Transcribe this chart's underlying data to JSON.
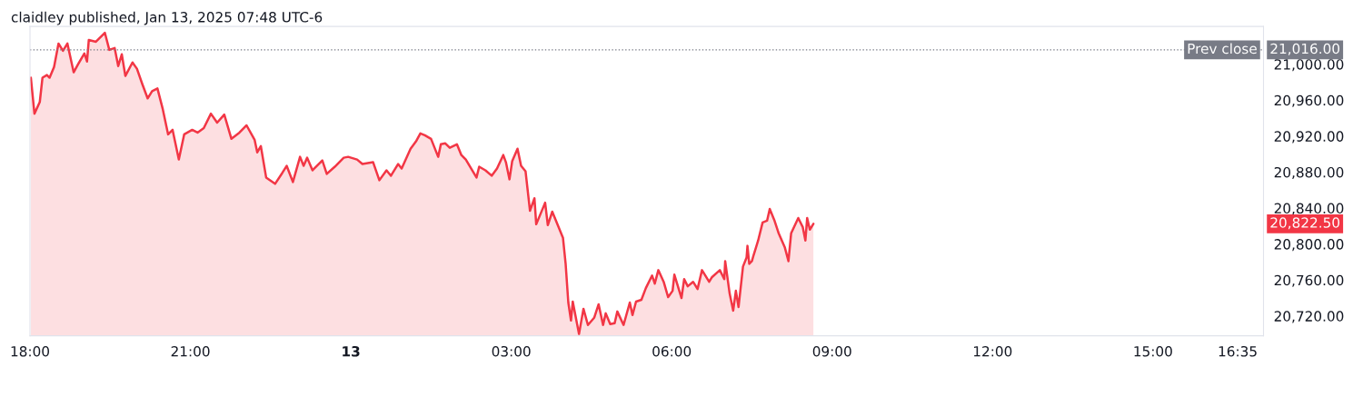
{
  "chart_data": {
    "type": "area",
    "title": "claidley published, Jan 13, 2025 07:48 UTC-6",
    "x": [
      "2025-01-12T18:01",
      "2025-01-12T18:05",
      "2025-01-12T18:11",
      "2025-01-12T18:14",
      "2025-01-12T18:19",
      "2025-01-12T18:22",
      "2025-01-12T18:27",
      "2025-01-12T18:32",
      "2025-01-12T18:37",
      "2025-01-12T18:42",
      "2025-01-12T18:49",
      "2025-01-12T18:54",
      "2025-01-12T19:01",
      "2025-01-12T19:04",
      "2025-01-12T19:06",
      "2025-01-12T19:14",
      "2025-01-12T19:24",
      "2025-01-12T19:29",
      "2025-01-12T19:35",
      "2025-01-12T19:39",
      "2025-01-12T19:43",
      "2025-01-12T19:47",
      "2025-01-12T19:55",
      "2025-01-12T20:00",
      "2025-01-12T20:06",
      "2025-01-12T20:12",
      "2025-01-12T20:17",
      "2025-01-12T20:23",
      "2025-01-12T20:29",
      "2025-01-12T20:35",
      "2025-01-12T20:40",
      "2025-01-12T20:47",
      "2025-01-12T20:53",
      "2025-01-12T21:02",
      "2025-01-12T21:08",
      "2025-01-12T21:15",
      "2025-01-12T21:23",
      "2025-01-12T21:30",
      "2025-01-12T21:38",
      "2025-01-12T21:46",
      "2025-01-12T21:55",
      "2025-01-12T22:03",
      "2025-01-12T22:12",
      "2025-01-12T22:15",
      "2025-01-12T22:19",
      "2025-01-12T22:25",
      "2025-01-12T22:35",
      "2025-01-12T22:43",
      "2025-01-12T22:48",
      "2025-01-12T22:55",
      "2025-01-12T23:03",
      "2025-01-12T23:07",
      "2025-01-12T23:11",
      "2025-01-12T23:17",
      "2025-01-12T23:28",
      "2025-01-12T23:33",
      "2025-01-12T23:42",
      "2025-01-12T23:52",
      "2025-01-12T23:57",
      "2025-01-13T00:07",
      "2025-01-13T00:13",
      "2025-01-13T00:25",
      "2025-01-13T00:32",
      "2025-01-13T00:40",
      "2025-01-13T00:45",
      "2025-01-13T00:53",
      "2025-01-13T00:57",
      "2025-01-13T01:07",
      "2025-01-13T01:13",
      "2025-01-13T01:18",
      "2025-01-13T01:23",
      "2025-01-13T01:30",
      "2025-01-13T01:38",
      "2025-01-13T01:41",
      "2025-01-13T01:46",
      "2025-01-13T01:51",
      "2025-01-13T01:59",
      "2025-01-13T02:04",
      "2025-01-13T02:09",
      "2025-01-13T02:21",
      "2025-01-13T02:24",
      "2025-01-13T02:31",
      "2025-01-13T02:38",
      "2025-01-13T02:44",
      "2025-01-13T02:51",
      "2025-01-13T02:54",
      "2025-01-13T02:58",
      "2025-01-13T03:01",
      "2025-01-13T03:07",
      "2025-01-13T03:11",
      "2025-01-13T03:16",
      "2025-01-13T03:21",
      "2025-01-13T03:26",
      "2025-01-13T03:28",
      "2025-01-13T03:38",
      "2025-01-13T03:41",
      "2025-01-13T03:46",
      "2025-01-13T03:53",
      "2025-01-13T03:58",
      "2025-01-13T04:01",
      "2025-01-13T04:04",
      "2025-01-13T04:07",
      "2025-01-13T04:09",
      "2025-01-13T04:16",
      "2025-01-13T04:21",
      "2025-01-13T04:26",
      "2025-01-13T04:33",
      "2025-01-13T04:38",
      "2025-01-13T04:43",
      "2025-01-13T04:46",
      "2025-01-13T04:51",
      "2025-01-13T04:56",
      "2025-01-13T04:59",
      "2025-01-13T05:06",
      "2025-01-13T05:13",
      "2025-01-13T05:16",
      "2025-01-13T05:20",
      "2025-01-13T05:26",
      "2025-01-13T05:31",
      "2025-01-13T05:38",
      "2025-01-13T05:41",
      "2025-01-13T05:45",
      "2025-01-13T05:51",
      "2025-01-13T05:56",
      "2025-01-13T06:01",
      "2025-01-13T06:03",
      "2025-01-13T06:11",
      "2025-01-13T06:14",
      "2025-01-13T06:18",
      "2025-01-13T06:24",
      "2025-01-13T06:29",
      "2025-01-13T06:34",
      "2025-01-13T06:42",
      "2025-01-13T06:45",
      "2025-01-13T06:54",
      "2025-01-13T06:59",
      "2025-01-13T07:00",
      "2025-01-13T07:05",
      "2025-01-13T07:09",
      "2025-01-13T07:12",
      "2025-01-13T07:15",
      "2025-01-13T07:20",
      "2025-01-13T07:24",
      "2025-01-13T07:25",
      "2025-01-13T07:27",
      "2025-01-13T07:30",
      "2025-01-13T07:32",
      "2025-01-13T07:37",
      "2025-01-13T07:42",
      "2025-01-13T07:47",
      "2025-01-13T07:50",
      "2025-01-13T07:55",
      "2025-01-13T08:00",
      "2025-01-13T08:07",
      "2025-01-13T08:11",
      "2025-01-13T08:14",
      "2025-01-13T08:22",
      "2025-01-13T08:27",
      "2025-01-13T08:30",
      "2025-01-13T08:32",
      "2025-01-13T08:35",
      "2025-01-13T08:39"
    ],
    "series": [
      {
        "color": "#f23645",
        "values": [
          20985,
          20945,
          20958,
          20985,
          20988,
          20985,
          20997,
          21023,
          21015,
          21023,
          20991,
          21000,
          21012,
          21003,
          21027,
          21025,
          21035,
          21016,
          21018,
          20998,
          21011,
          20987,
          21002,
          20995,
          20978,
          20962,
          20970,
          20973,
          20950,
          20922,
          20927,
          20894,
          20922,
          20927,
          20924,
          20929,
          20945,
          20935,
          20944,
          20917,
          20924,
          20932,
          20916,
          20902,
          20909,
          20874,
          20867,
          20879,
          20887,
          20869,
          20897,
          20887,
          20896,
          20882,
          20893,
          20878,
          20886,
          20896,
          20897,
          20894,
          20889,
          20891,
          20871,
          20882,
          20876,
          20889,
          20884,
          20906,
          20914,
          20923,
          20921,
          20917,
          20897,
          20911,
          20912,
          20907,
          20911,
          20899,
          20894,
          20874,
          20886,
          20882,
          20876,
          20884,
          20899,
          20891,
          20872,
          20892,
          20906,
          20887,
          20881,
          20837,
          20851,
          20822,
          20846,
          20821,
          20836,
          20819,
          20807,
          20778,
          20735,
          20715,
          20736,
          20700,
          20728,
          20710,
          20718,
          20733,
          20710,
          20723,
          20711,
          20712,
          20725,
          20710,
          20735,
          20721,
          20736,
          20738,
          20751,
          20765,
          20756,
          20771,
          20758,
          20741,
          20748,
          20766,
          20740,
          20761,
          20753,
          20758,
          20750,
          20771,
          20758,
          20763,
          20771,
          20761,
          20781,
          20745,
          20726,
          20748,
          20730,
          20775,
          20785,
          20798,
          20778,
          20781,
          20788,
          20804,
          20824,
          20826,
          20839,
          20827,
          20812,
          20796,
          20781,
          20812,
          20829,
          20819,
          20804,
          20829,
          20816,
          20822.5
        ]
      }
    ],
    "xlim": [
      "2025-01-12T18:00",
      "2025-01-13T17:04"
    ],
    "xticks": [
      {
        "value": "2025-01-12T18:00",
        "label": "18:00"
      },
      {
        "value": "2025-01-12T21:00",
        "label": "21:00"
      },
      {
        "value": "2025-01-13T00:00",
        "label": "13"
      },
      {
        "value": "2025-01-13T03:00",
        "label": "03:00"
      },
      {
        "value": "2025-01-13T06:00",
        "label": "06:00"
      },
      {
        "value": "2025-01-13T09:00",
        "label": "09:00"
      },
      {
        "value": "2025-01-13T12:00",
        "label": "12:00"
      },
      {
        "value": "2025-01-13T15:00",
        "label": "15:00"
      },
      {
        "value": "2025-01-13T16:35",
        "label": "16:35"
      }
    ],
    "ylim": [
      20698,
      21042
    ],
    "yticks": [
      {
        "value": 20720,
        "label": "20,720.00"
      },
      {
        "value": 20760,
        "label": "20,760.00"
      },
      {
        "value": 20800,
        "label": "20,800.00"
      },
      {
        "value": 20840,
        "label": "20,840.00"
      },
      {
        "value": 20880,
        "label": "20,880.00"
      },
      {
        "value": 20920,
        "label": "20,920.00"
      },
      {
        "value": 20960,
        "label": "20,960.00"
      },
      {
        "value": 21000,
        "label": "21,000.00"
      }
    ],
    "ref_lines": [
      {
        "axis": "y",
        "value": 21016.0,
        "label": "Prev close",
        "color": "#787b86",
        "line_style": "dotted"
      }
    ],
    "annotations": [
      "21,016.00",
      "20,822.50"
    ],
    "grid": false,
    "legend": false
  }
}
